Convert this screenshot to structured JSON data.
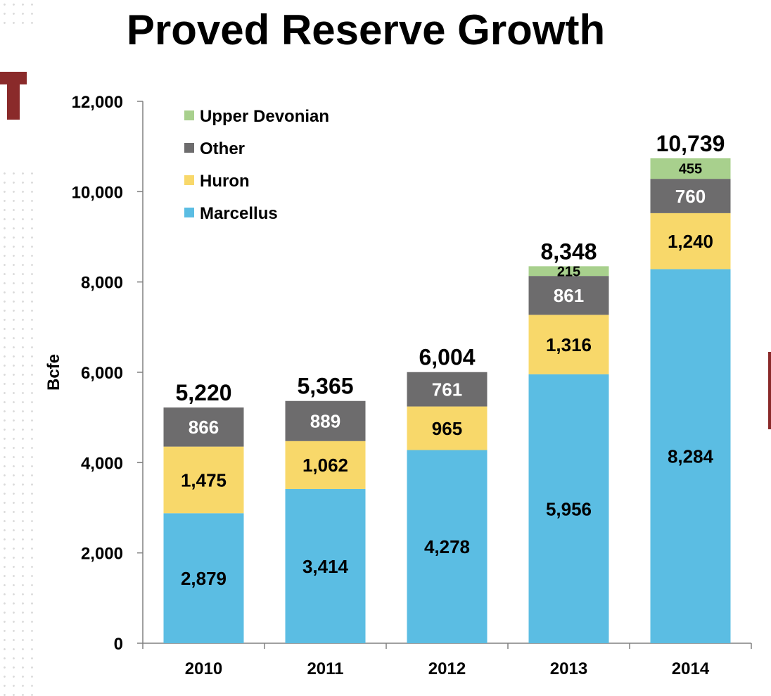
{
  "title": "Proved Reserve Growth",
  "colors": {
    "Marcellus": "#5bbde3",
    "Huron": "#f8d86a",
    "Other": "#6d6c6d",
    "Upper Devonian": "#a8d08d",
    "logo": "#8a2a2a"
  },
  "chart_data": {
    "type": "bar",
    "stacked": true,
    "title": "Proved Reserve Growth",
    "xlabel": "",
    "ylabel": "Bcfe",
    "ylim": [
      0,
      12000
    ],
    "yticks": [
      0,
      2000,
      4000,
      6000,
      8000,
      10000,
      12000
    ],
    "ytick_labels": [
      "0",
      "2,000",
      "4,000",
      "6,000",
      "8,000",
      "10,000",
      "12,000"
    ],
    "categories": [
      "2010",
      "2011",
      "2012",
      "2013",
      "2014"
    ],
    "series": [
      {
        "name": "Marcellus",
        "values": [
          2879,
          3414,
          4278,
          5956,
          8284
        ],
        "labels": [
          "2,879",
          "3,414",
          "4,278",
          "5,956",
          "8,284"
        ]
      },
      {
        "name": "Huron",
        "values": [
          1475,
          1062,
          965,
          1316,
          1240
        ],
        "labels": [
          "1,475",
          "1,062",
          "965",
          "1,316",
          "1,240"
        ]
      },
      {
        "name": "Other",
        "values": [
          866,
          889,
          761,
          861,
          760
        ],
        "labels": [
          "866",
          "889",
          "761",
          "861",
          "760"
        ]
      },
      {
        "name": "Upper Devonian",
        "values": [
          0,
          0,
          0,
          215,
          455
        ],
        "labels": [
          "",
          "",
          "",
          "215",
          "455"
        ]
      }
    ],
    "totals": [
      5220,
      5365,
      6004,
      8348,
      10739
    ],
    "total_labels": [
      "5,220",
      "5,365",
      "6,004",
      "8,348",
      "10,739"
    ],
    "legend": {
      "placement": "top-left",
      "entries": [
        "Upper Devonian",
        "Other",
        "Huron",
        "Marcellus"
      ]
    },
    "grid": false
  }
}
